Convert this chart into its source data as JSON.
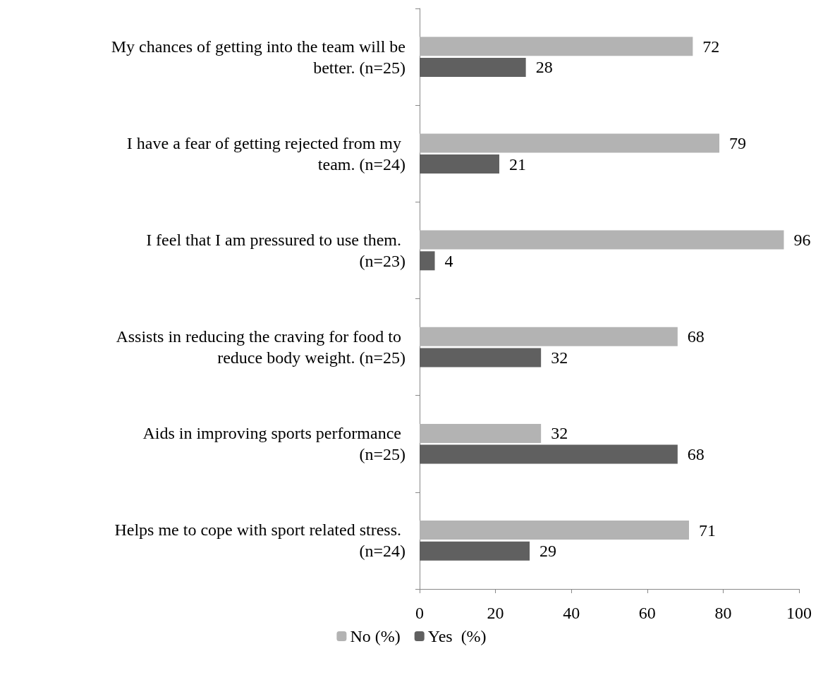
{
  "chart_data": {
    "type": "bar",
    "orientation": "horizontal",
    "categories": [
      "My chances of getting into the team will be better. (n=25)",
      "I have a fear of getting rejected from my team. (n=24)",
      "I feel that I am pressured to use them. (n=23)",
      "Assists in reducing the craving for food to reduce body weight. (n=25)",
      "Aids in improving sports performance (n=25)",
      "Helps me to cope with sport related stress. (n=24)"
    ],
    "series": [
      {
        "name": "No (%)",
        "color": "#b3b3b3",
        "values": [
          72,
          79,
          96,
          68,
          32,
          71
        ]
      },
      {
        "name": "Yes  (%)",
        "color": "#606060",
        "values": [
          28,
          21,
          4,
          32,
          68,
          29
        ]
      }
    ],
    "xlim": [
      0,
      100
    ],
    "xticks": [
      0,
      20,
      40,
      60,
      80,
      100
    ],
    "grid": false,
    "legend": "bottom",
    "data_labels": true
  }
}
